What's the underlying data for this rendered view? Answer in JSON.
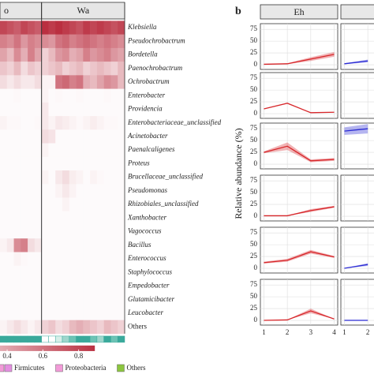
{
  "chart_data": [
    {
      "type": "heatmap",
      "groups": [
        {
          "label": "o",
          "columns": 6
        },
        {
          "label": "Wa",
          "columns": 12
        }
      ],
      "rows": [
        "Klebsiella",
        "Pseudochrobactrum",
        "Bordetella",
        "Paenochrobactrum",
        "Ochrobactrum",
        "Enterobacter",
        "Providencia",
        "Enterobacteriaceae_unclassified",
        "Acinetobacter",
        "Paenalcaligenes",
        "Proteus",
        "Brucellaceae_unclassified",
        "Pseudomonas",
        "Rhizobiales_unclassified",
        "Xanthobacter",
        "Vagococcus",
        "Bacillus",
        "Enterococcus",
        "Staphylococcus",
        "Empedobacter",
        "Glutamicibacter",
        "Leucobacter",
        "Others"
      ],
      "label_styles": [
        "italic",
        "italic",
        "italic",
        "italic",
        "italic",
        "italic",
        "italic",
        "italic",
        "italic",
        "italic",
        "italic",
        "italic",
        "italic",
        "italic",
        "italic",
        "italic",
        "italic",
        "italic",
        "italic",
        "italic",
        "italic",
        "italic",
        "normal"
      ],
      "values": [
        [
          0.8,
          0.75,
          0.7,
          0.8,
          0.75,
          0.7,
          0.9,
          0.85,
          0.9,
          0.85,
          0.8,
          0.75,
          0.85,
          0.8,
          0.85,
          0.8,
          0.75,
          0.8
        ],
        [
          0.55,
          0.5,
          0.6,
          0.45,
          0.55,
          0.5,
          0.5,
          0.45,
          0.6,
          0.65,
          0.55,
          0.6,
          0.65,
          0.6,
          0.55,
          0.6,
          0.55,
          0.5
        ],
        [
          0.4,
          0.3,
          0.5,
          0.35,
          0.55,
          0.4,
          0.2,
          0.3,
          0.45,
          0.5,
          0.35,
          0.4,
          0.55,
          0.45,
          0.5,
          0.55,
          0.45,
          0.4
        ],
        [
          0.25,
          0.2,
          0.3,
          0.15,
          0.25,
          0.2,
          0.2,
          0.25,
          0.3,
          0.2,
          0.25,
          0.3,
          0.2,
          0.25,
          0.3,
          0.25,
          0.2,
          0.3
        ],
        [
          0.15,
          0.1,
          0.15,
          0.1,
          0.1,
          0.15,
          0.05,
          0.05,
          0.6,
          0.65,
          0.55,
          0.6,
          0.35,
          0.3,
          0.4,
          0.5,
          0.45,
          0.3
        ],
        [
          0.02,
          0.02,
          0.03,
          0.02,
          0.02,
          0.02,
          0.05,
          0.02,
          0.03,
          0.02,
          0.02,
          0.03,
          0.02,
          0.02,
          0.02,
          0.03,
          0.02,
          0.02
        ],
        [
          0.02,
          0.02,
          0.02,
          0.02,
          0.02,
          0.02,
          0.1,
          0.02,
          0.02,
          0.02,
          0.02,
          0.02,
          0.02,
          0.02,
          0.02,
          0.02,
          0.02,
          0.02
        ],
        [
          0.05,
          0.03,
          0.03,
          0.02,
          0.02,
          0.03,
          0.1,
          0.05,
          0.1,
          0.08,
          0.05,
          0.03,
          0.05,
          0.08,
          0.05,
          0.03,
          0.03,
          0.02
        ],
        [
          0.02,
          0.02,
          0.02,
          0.02,
          0.02,
          0.02,
          0.15,
          0.12,
          0.02,
          0.02,
          0.02,
          0.02,
          0.02,
          0.02,
          0.02,
          0.02,
          0.02,
          0.02
        ],
        [
          0.02,
          0.02,
          0.02,
          0.02,
          0.02,
          0.02,
          0.05,
          0.02,
          0.02,
          0.02,
          0.02,
          0.02,
          0.02,
          0.02,
          0.02,
          0.02,
          0.02,
          0.02
        ],
        [
          0.02,
          0.02,
          0.02,
          0.02,
          0.02,
          0.02,
          0.02,
          0.02,
          0.02,
          0.02,
          0.02,
          0.02,
          0.02,
          0.02,
          0.02,
          0.02,
          0.02,
          0.02
        ],
        [
          0.02,
          0.02,
          0.02,
          0.02,
          0.02,
          0.02,
          0.05,
          0.02,
          0.1,
          0.15,
          0.08,
          0.05,
          0.02,
          0.05,
          0.03,
          0.02,
          0.02,
          0.02
        ],
        [
          0.02,
          0.02,
          0.02,
          0.02,
          0.02,
          0.02,
          0.02,
          0.02,
          0.05,
          0.1,
          0.05,
          0.02,
          0.02,
          0.02,
          0.02,
          0.02,
          0.02,
          0.02
        ],
        [
          0.02,
          0.02,
          0.02,
          0.02,
          0.02,
          0.02,
          0.02,
          0.02,
          0.02,
          0.05,
          0.02,
          0.02,
          0.02,
          0.02,
          0.02,
          0.02,
          0.02,
          0.02
        ],
        [
          0.02,
          0.02,
          0.02,
          0.02,
          0.02,
          0.02,
          0.02,
          0.02,
          0.02,
          0.02,
          0.02,
          0.02,
          0.02,
          0.02,
          0.02,
          0.02,
          0.02,
          0.02
        ],
        [
          0.02,
          0.02,
          0.02,
          0.02,
          0.02,
          0.02,
          0.02,
          0.02,
          0.02,
          0.02,
          0.02,
          0.02,
          0.02,
          0.02,
          0.02,
          0.02,
          0.02,
          0.02
        ],
        [
          0.05,
          0.1,
          0.5,
          0.55,
          0.15,
          0.1,
          0.02,
          0.02,
          0.02,
          0.02,
          0.02,
          0.02,
          0.02,
          0.02,
          0.02,
          0.02,
          0.02,
          0.02
        ],
        [
          0.02,
          0.02,
          0.05,
          0.03,
          0.02,
          0.02,
          0.02,
          0.02,
          0.02,
          0.02,
          0.02,
          0.02,
          0.02,
          0.02,
          0.02,
          0.02,
          0.02,
          0.02
        ],
        [
          0.02,
          0.02,
          0.02,
          0.02,
          0.02,
          0.02,
          0.02,
          0.02,
          0.02,
          0.02,
          0.02,
          0.02,
          0.02,
          0.02,
          0.02,
          0.02,
          0.02,
          0.02
        ],
        [
          0.02,
          0.02,
          0.02,
          0.02,
          0.02,
          0.02,
          0.02,
          0.02,
          0.02,
          0.02,
          0.02,
          0.02,
          0.02,
          0.02,
          0.02,
          0.02,
          0.02,
          0.02
        ],
        [
          0.02,
          0.02,
          0.02,
          0.02,
          0.02,
          0.02,
          0.02,
          0.02,
          0.02,
          0.02,
          0.02,
          0.02,
          0.02,
          0.02,
          0.02,
          0.02,
          0.02,
          0.02
        ],
        [
          0.02,
          0.02,
          0.02,
          0.02,
          0.02,
          0.02,
          0.02,
          0.02,
          0.02,
          0.02,
          0.02,
          0.02,
          0.02,
          0.02,
          0.02,
          0.02,
          0.02,
          0.02
        ],
        [
          0.05,
          0.1,
          0.15,
          0.1,
          0.05,
          0.1,
          0.2,
          0.25,
          0.15,
          0.2,
          0.3,
          0.35,
          0.3,
          0.25,
          0.2,
          0.3,
          0.25,
          0.2
        ]
      ],
      "color": "#b2182b",
      "annotation_colors": [
        "#3aa99b",
        "#3aa99b",
        "#3aa99b",
        "#3aa99b",
        "#3aa99b",
        "#3aa99b",
        "#ffffff",
        "#ffffff",
        "#d7efe9",
        "#9fd6cc",
        "#6cc3b5",
        "#3aa99b",
        "#3aa99b",
        "#6cc3b5",
        "#9fd6cc",
        "#3aa99b",
        "#6cc3b5",
        "#3aa99b"
      ],
      "colorbar_lim": [
        0.36,
        0.89
      ],
      "colorbar_ticks": [
        0.4,
        0.6,
        0.8
      ],
      "legend": [
        {
          "name": "Firmicutes",
          "color": "#e48fe0"
        },
        {
          "name": "Proteobacteria",
          "color": "#f29ad8"
        },
        {
          "name": "Others",
          "color": "#8cc63f"
        }
      ]
    },
    {
      "type": "line",
      "panel_label": "b",
      "columns": [
        "Eh"
      ],
      "ylabel": "Relative abundance (%)",
      "x": [
        1,
        2,
        3,
        4
      ],
      "xticks": [
        1,
        2,
        3,
        4
      ],
      "xlim": [
        0.85,
        4.15
      ],
      "ylim": [
        -10,
        87
      ],
      "yticks": [
        0,
        25,
        50,
        75
      ],
      "grid": true,
      "series": [
        {
          "color": "#d7262a",
          "column": 0,
          "panels": [
            {
              "values": [
                1,
                2,
                12,
                22
              ],
              "errors": [
                0,
                1,
                4,
                5
              ]
            },
            {
              "values": [
                10,
                22,
                2,
                3
              ],
              "errors": [
                0,
                0,
                0,
                0
              ]
            },
            {
              "values": [
                25,
                38,
                7,
                10
              ],
              "errors": [
                2,
                8,
                3,
                3
              ]
            },
            {
              "values": [
                1,
                1,
                12,
                20
              ],
              "errors": [
                0,
                0,
                3,
                2
              ]
            },
            {
              "values": [
                12,
                17,
                35,
                24
              ],
              "errors": [
                2,
                3,
                4,
                2
              ]
            },
            {
              "values": [
                0,
                1,
                20,
                3
              ],
              "errors": [
                0,
                0,
                5,
                0
              ]
            }
          ]
        },
        {
          "color": "#2b2bd4",
          "column": 1,
          "panels": [
            {
              "values": [
                2,
                8,
                null,
                null
              ],
              "errors": [
                1,
                3,
                null,
                null
              ]
            },
            {
              "values": [
                null,
                null,
                null,
                null
              ],
              "errors": [
                null,
                null,
                null,
                null
              ]
            },
            {
              "values": [
                70,
                75,
                null,
                null
              ],
              "errors": [
                8,
                10,
                null,
                null
              ]
            },
            {
              "values": [
                null,
                null,
                null,
                null
              ],
              "errors": [
                null,
                null,
                null,
                null
              ]
            },
            {
              "values": [
                0,
                8,
                null,
                null
              ],
              "errors": [
                0,
                3,
                null,
                null
              ]
            },
            {
              "values": [
                0,
                0,
                null,
                null
              ],
              "errors": [
                0,
                0,
                null,
                null
              ]
            }
          ]
        }
      ]
    }
  ]
}
